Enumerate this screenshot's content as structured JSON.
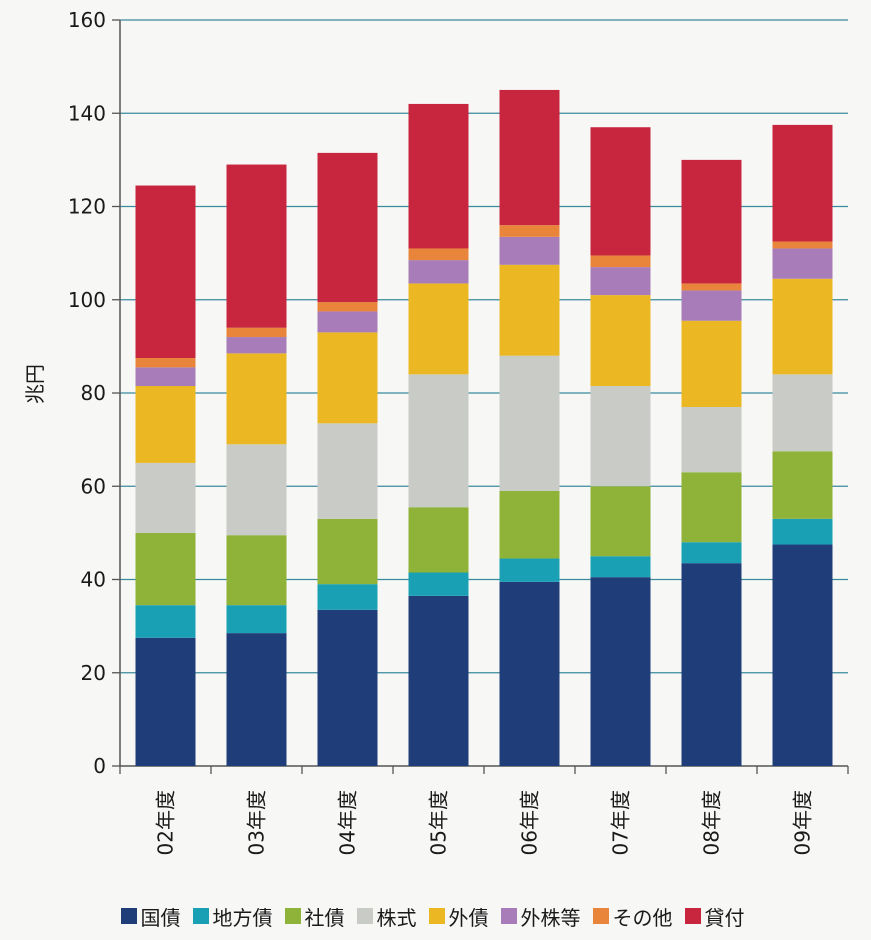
{
  "chart_data": {
    "type": "bar",
    "stacked": true,
    "title": "",
    "xlabel": "",
    "ylabel": "兆円",
    "ylim": [
      0,
      160
    ],
    "yticks": [
      0,
      20,
      40,
      60,
      80,
      100,
      120,
      140,
      160
    ],
    "grid": true,
    "legend_position": "bottom",
    "categories": [
      "02年度",
      "03年度",
      "04年度",
      "05年度",
      "06年度",
      "07年度",
      "08年度",
      "09年度"
    ],
    "series": [
      {
        "name": "国債",
        "color": "#1f3d78",
        "values": [
          27.5,
          28.5,
          33.5,
          36.5,
          39.5,
          40.5,
          43.5,
          47.5
        ]
      },
      {
        "name": "地方債",
        "color": "#1aa0b4",
        "values": [
          7.0,
          6.0,
          5.5,
          5.0,
          5.0,
          4.5,
          4.5,
          5.5
        ]
      },
      {
        "name": "社債",
        "color": "#8fb338",
        "values": [
          15.5,
          15.0,
          14.0,
          14.0,
          14.5,
          15.0,
          15.0,
          14.5
        ]
      },
      {
        "name": "株式",
        "color": "#c8cbc6",
        "values": [
          15.0,
          19.5,
          20.5,
          28.5,
          29.0,
          21.5,
          14.0,
          16.5
        ]
      },
      {
        "name": "外債",
        "color": "#ebb823",
        "values": [
          16.5,
          19.5,
          19.5,
          19.5,
          19.5,
          19.5,
          18.5,
          20.5
        ]
      },
      {
        "name": "外株等",
        "color": "#a77cb8",
        "values": [
          4.0,
          3.5,
          4.5,
          5.0,
          6.0,
          6.0,
          6.5,
          6.5
        ]
      },
      {
        "name": "その他",
        "color": "#e8853a",
        "values": [
          2.0,
          2.0,
          2.0,
          2.5,
          2.5,
          2.5,
          1.5,
          1.5
        ]
      },
      {
        "name": "貸付",
        "color": "#c8253f",
        "values": [
          37.0,
          35.0,
          32.0,
          31.0,
          29.0,
          27.5,
          26.5,
          25.0
        ]
      }
    ]
  }
}
